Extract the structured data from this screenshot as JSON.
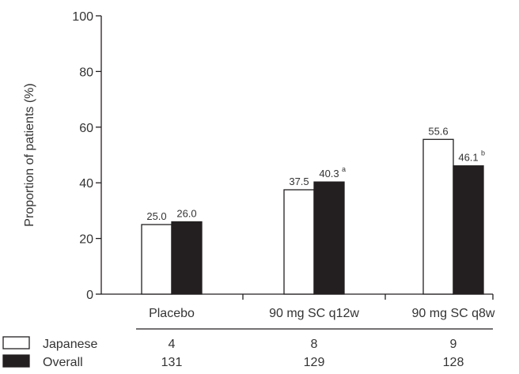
{
  "chart_data": {
    "type": "bar",
    "ylabel": "Proportion of patients (%)",
    "ylim": [
      0,
      100
    ],
    "yticks": [
      0,
      20,
      40,
      60,
      80,
      100
    ],
    "categories": [
      "Placebo",
      "90 mg SC q12w",
      "90 mg SC q8w"
    ],
    "series": [
      {
        "name": "Japanese",
        "color": "#ffffff",
        "values": [
          25.0,
          37.5,
          55.6
        ],
        "labels": [
          "25.0",
          "37.5",
          "55.6"
        ],
        "superscripts": [
          "",
          "",
          ""
        ],
        "n": [
          "4",
          "8",
          "9"
        ]
      },
      {
        "name": "Overall",
        "color": "#231f20",
        "values": [
          26.0,
          40.3,
          46.1
        ],
        "labels": [
          "26.0",
          "40.3",
          "46.1"
        ],
        "superscripts": [
          "",
          "a",
          "b"
        ],
        "n": [
          "131",
          "129",
          "128"
        ]
      }
    ],
    "grid": false,
    "legend": "bottom-left"
  }
}
